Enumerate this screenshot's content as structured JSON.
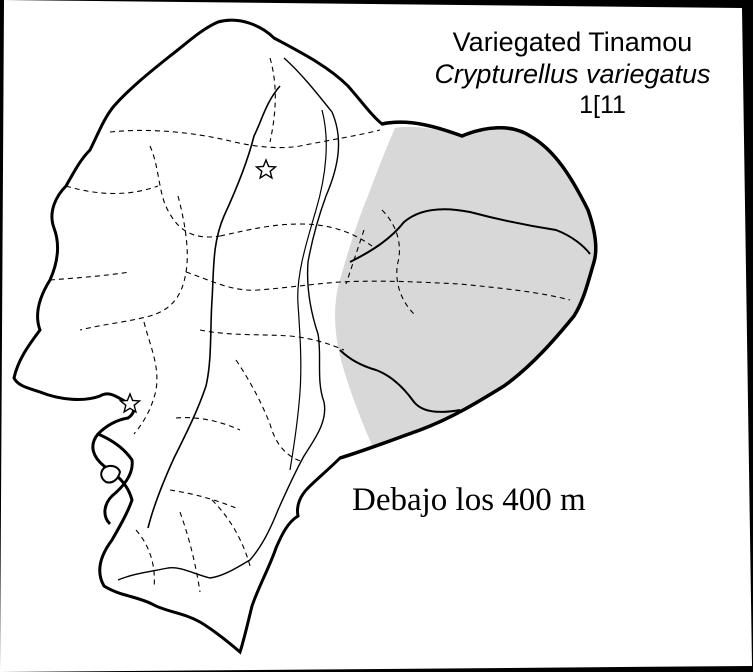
{
  "species": {
    "common_name": "Variegated Tinamou",
    "scientific_name": "Crypturellus variegatus",
    "map_code": "1[11"
  },
  "range": {
    "label": "Debajo los 400 m",
    "fill_color": "#d8d8d8"
  },
  "colors": {
    "page_background": "#ffffff",
    "border_frame": "#000000",
    "outline": "#000000"
  },
  "markers": [
    {
      "name": "star-marker-quito",
      "shape": "star"
    },
    {
      "name": "star-marker-guayaquil",
      "shape": "star"
    }
  ]
}
